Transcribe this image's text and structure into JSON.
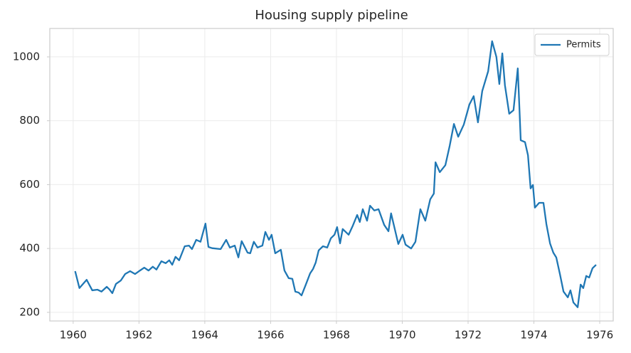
{
  "chart_data": {
    "type": "line",
    "title": "Housing supply pipeline",
    "x": [
      1960.06,
      1960.19,
      1960.41,
      1960.58,
      1960.74,
      1960.86,
      1961.02,
      1961.1,
      1961.19,
      1961.3,
      1961.45,
      1961.58,
      1961.73,
      1961.88,
      1962.03,
      1962.16,
      1962.29,
      1962.42,
      1962.53,
      1962.68,
      1962.81,
      1962.92,
      1963.01,
      1963.11,
      1963.22,
      1963.39,
      1963.52,
      1963.61,
      1963.74,
      1963.87,
      1964.02,
      1964.11,
      1964.22,
      1964.48,
      1964.65,
      1964.76,
      1964.91,
      1965.02,
      1965.12,
      1965.3,
      1965.38,
      1965.49,
      1965.6,
      1965.75,
      1965.84,
      1965.95,
      1966.03,
      1966.14,
      1966.31,
      1966.42,
      1966.55,
      1966.66,
      1966.75,
      1966.85,
      1966.94,
      1967.07,
      1967.2,
      1967.29,
      1967.37,
      1967.46,
      1967.59,
      1967.72,
      1967.83,
      1967.94,
      1968.02,
      1968.11,
      1968.19,
      1968.37,
      1968.5,
      1968.63,
      1968.71,
      1968.8,
      1968.93,
      1969.02,
      1969.15,
      1969.28,
      1969.45,
      1969.58,
      1969.66,
      1969.88,
      1970.01,
      1970.1,
      1970.27,
      1970.4,
      1970.55,
      1970.7,
      1970.85,
      1970.96,
      1971.01,
      1971.14,
      1971.31,
      1971.44,
      1971.57,
      1971.7,
      1971.87,
      1972.04,
      1972.17,
      1972.3,
      1972.43,
      1972.61,
      1972.73,
      1972.86,
      1972.95,
      1973.04,
      1973.12,
      1973.25,
      1973.38,
      1973.51,
      1973.6,
      1973.73,
      1973.82,
      1973.9,
      1973.97,
      1974.03,
      1974.16,
      1974.29,
      1974.38,
      1974.49,
      1974.59,
      1974.68,
      1974.79,
      1974.9,
      1975.03,
      1975.11,
      1975.2,
      1975.33,
      1975.42,
      1975.5,
      1975.59,
      1975.68,
      1975.78,
      1975.89
    ],
    "series": [
      {
        "name": "Permits",
        "color": "#1f77b4",
        "values": [
          329,
          276,
          302,
          269,
          271,
          265,
          280,
          272,
          260,
          289,
          300,
          320,
          329,
          320,
          331,
          340,
          331,
          343,
          334,
          360,
          354,
          363,
          349,
          374,
          363,
          407,
          409,
          398,
          427,
          421,
          478,
          405,
          401,
          398,
          427,
          403,
          409,
          372,
          423,
          387,
          385,
          421,
          403,
          409,
          452,
          427,
          443,
          385,
          396,
          331,
          307,
          305,
          265,
          262,
          253,
          287,
          322,
          336,
          356,
          394,
          407,
          403,
          432,
          443,
          467,
          416,
          461,
          443,
          472,
          505,
          483,
          523,
          487,
          534,
          519,
          523,
          474,
          454,
          510,
          414,
          443,
          412,
          400,
          421,
          523,
          487,
          554,
          572,
          670,
          639,
          661,
          721,
          790,
          750,
          788,
          851,
          877,
          795,
          893,
          955,
          1049,
          1000,
          915,
          1011,
          911,
          822,
          833,
          964,
          739,
          733,
          692,
          588,
          599,
          528,
          543,
          543,
          476,
          416,
          387,
          372,
          320,
          265,
          247,
          269,
          231,
          216,
          287,
          276,
          314,
          309,
          338,
          349
        ]
      }
    ],
    "xlim": [
      1959.29,
      1976.41
    ],
    "xticks": [
      1960,
      1962,
      1964,
      1966,
      1968,
      1970,
      1972,
      1974,
      1976
    ],
    "ylim": [
      173,
      1089
    ],
    "yticks": [
      200,
      400,
      600,
      800,
      1000
    ],
    "grid": true,
    "legend": "upper right"
  }
}
